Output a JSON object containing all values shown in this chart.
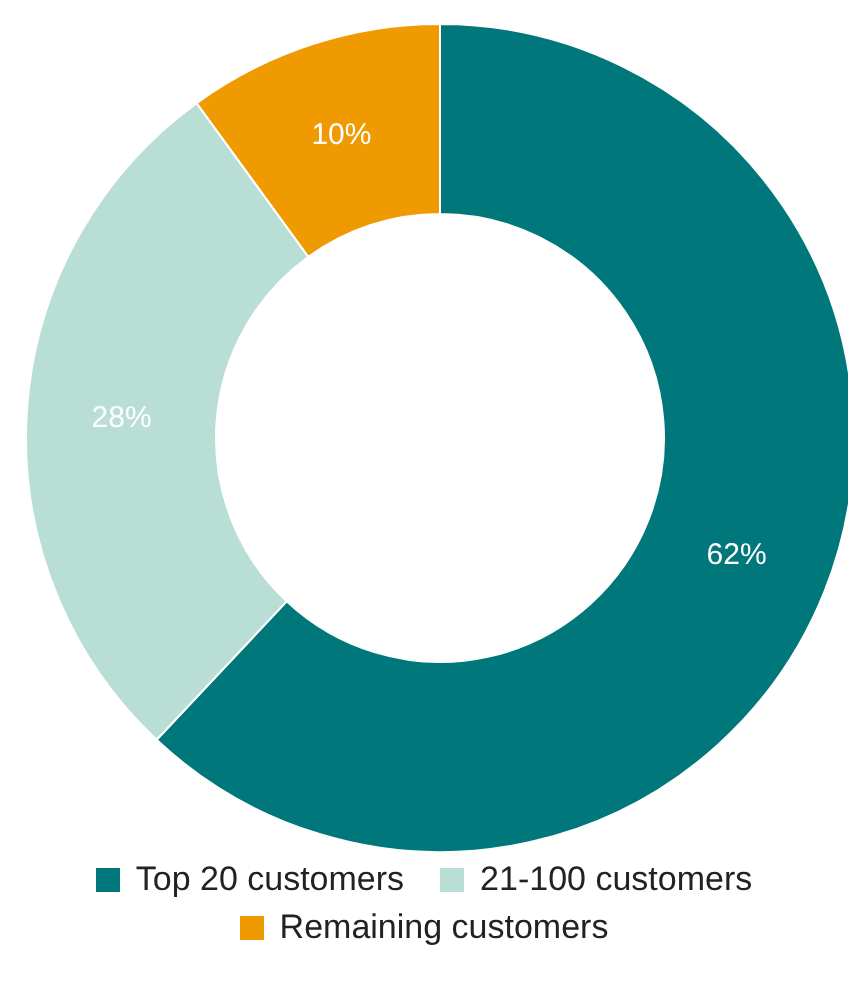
{
  "chart_data": {
    "type": "donut",
    "categories": [
      "Top 20 customers",
      "21-100 customers",
      "Remaining customers"
    ],
    "values": [
      62,
      28,
      10
    ],
    "colors": [
      "#00777a",
      "#b9ded5",
      "#ee9a00"
    ],
    "value_labels": [
      "62%",
      "28%",
      "10%"
    ],
    "legend": "bottom"
  }
}
